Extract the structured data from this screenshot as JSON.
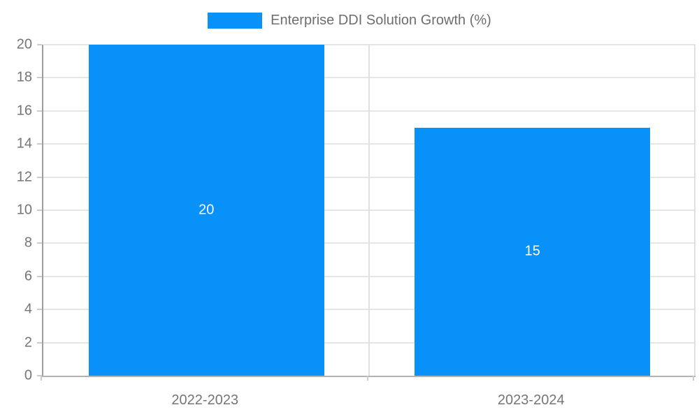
{
  "chart_data": {
    "type": "bar",
    "title": "Enterprise DDI Solution Growth (%)",
    "categories": [
      "2022-2023",
      "2023-2024"
    ],
    "values": [
      20,
      15
    ],
    "xlabel": "",
    "ylabel": "",
    "ylim": [
      0,
      20
    ],
    "ytick_step": 2,
    "ytick_labels": [
      "0",
      "2",
      "4",
      "6",
      "8",
      "10",
      "12",
      "14",
      "16",
      "18",
      "20"
    ],
    "grid": true,
    "legend_position": "top",
    "bar_labels": [
      "20",
      "15"
    ],
    "colors": {
      "bar": "#0991FA",
      "bar_label_text": "#ffffff",
      "axis_text": "#757575",
      "legend_text": "#6e6e6e",
      "gridline": "#e6e6e6",
      "y_axis_line": "#9e9e9e",
      "x_axis_line": "#b3b3b3"
    }
  },
  "legend": {
    "label": "Enterprise DDI Solution Growth (%)",
    "swatch_color": "#0991FA"
  }
}
